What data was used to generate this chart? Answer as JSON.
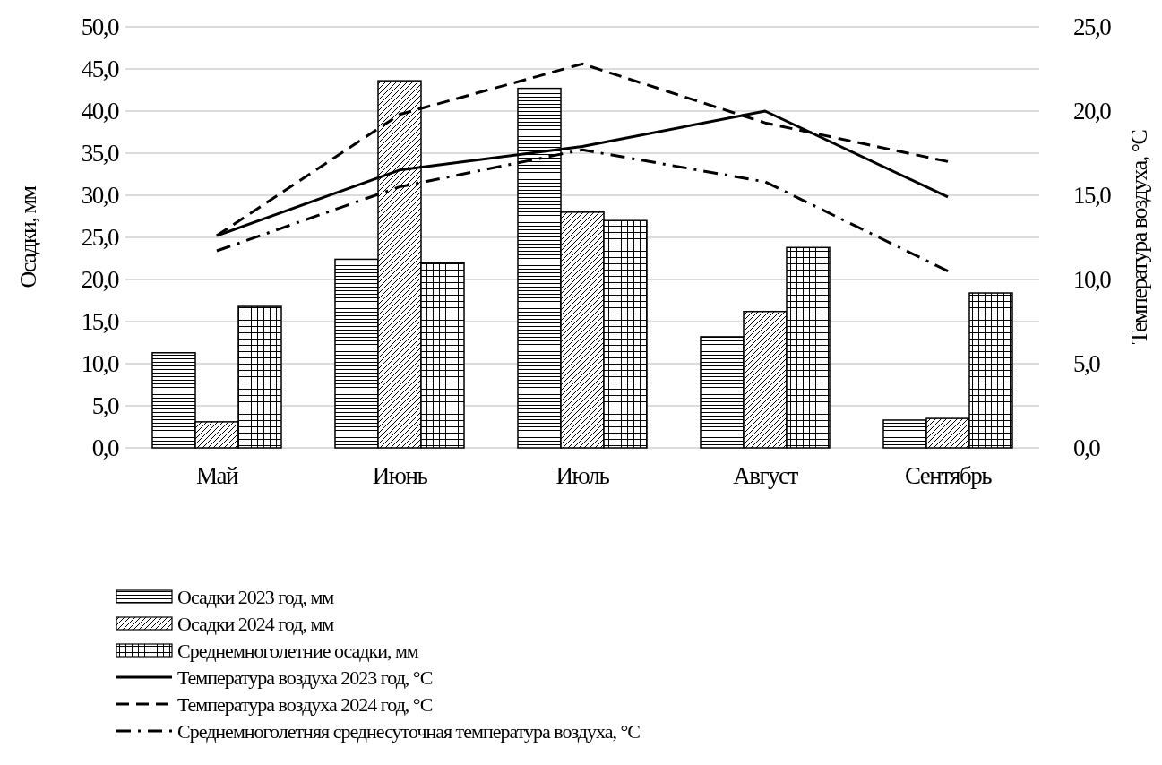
{
  "chart_data": {
    "type": "bar",
    "categories": [
      "Май",
      "Июнь",
      "Июль",
      "Август",
      "Сентябрь"
    ],
    "ylabel": "Осадки, мм",
    "y2label": "Температура воздуха, °С",
    "ylim": [
      0,
      50
    ],
    "yticks": [
      {
        "value": 0,
        "label": "0,0"
      },
      {
        "value": 5,
        "label": "5,0"
      },
      {
        "value": 10,
        "label": "10,0"
      },
      {
        "value": 15,
        "label": "15,0"
      },
      {
        "value": 20,
        "label": "20,0"
      },
      {
        "value": 25,
        "label": "25,0"
      },
      {
        "value": 30,
        "label": "30,0"
      },
      {
        "value": 35,
        "label": "35,0"
      },
      {
        "value": 40,
        "label": "40,0"
      },
      {
        "value": 45,
        "label": "45,0"
      },
      {
        "value": 50,
        "label": "50,0"
      }
    ],
    "y2lim": [
      0,
      25
    ],
    "y2ticks": [
      {
        "value": 0,
        "label": "0,0"
      },
      {
        "value": 5,
        "label": "5,0"
      },
      {
        "value": 10,
        "label": "10,0"
      },
      {
        "value": 15,
        "label": "15,0"
      },
      {
        "value": 20,
        "label": "20,0"
      },
      {
        "value": 25,
        "label": "25,0"
      }
    ],
    "grid": "y",
    "legend": "bottom left",
    "series": [
      {
        "name": "Осадки 2023 год, мм",
        "color": "#000000",
        "values": [
          11.3,
          22.4,
          42.7,
          13.2,
          3.3
        ]
      },
      {
        "name": "Осадки 2024 год, мм",
        "color": "#000000",
        "values": [
          3.1,
          43.6,
          28.0,
          16.2,
          3.5
        ]
      },
      {
        "name": "Среднемноголетние осадки, мм",
        "color": "#000000",
        "values": [
          16.8,
          22.0,
          27.0,
          23.8,
          18.4
        ]
      },
      {
        "name": "Температура воздуха 2023 год, °С",
        "type": "line",
        "axis": "y2",
        "color": "#000000",
        "line_style": "solid",
        "values": [
          12.6,
          16.5,
          17.9,
          20.0,
          14.9
        ]
      },
      {
        "name": "Температура воздуха 2024 год, °С",
        "type": "line",
        "axis": "y2",
        "color": "#000000",
        "line_style": "dashed",
        "values": [
          12.6,
          19.8,
          22.8,
          19.3,
          17.0
        ]
      },
      {
        "name": "Среднемноголетняя среднесуточная температура воздуха, °С",
        "type": "line",
        "axis": "y2",
        "color": "#000000",
        "line_style": "dashdot",
        "values": [
          11.7,
          15.5,
          17.7,
          15.8,
          10.5
        ]
      }
    ]
  }
}
